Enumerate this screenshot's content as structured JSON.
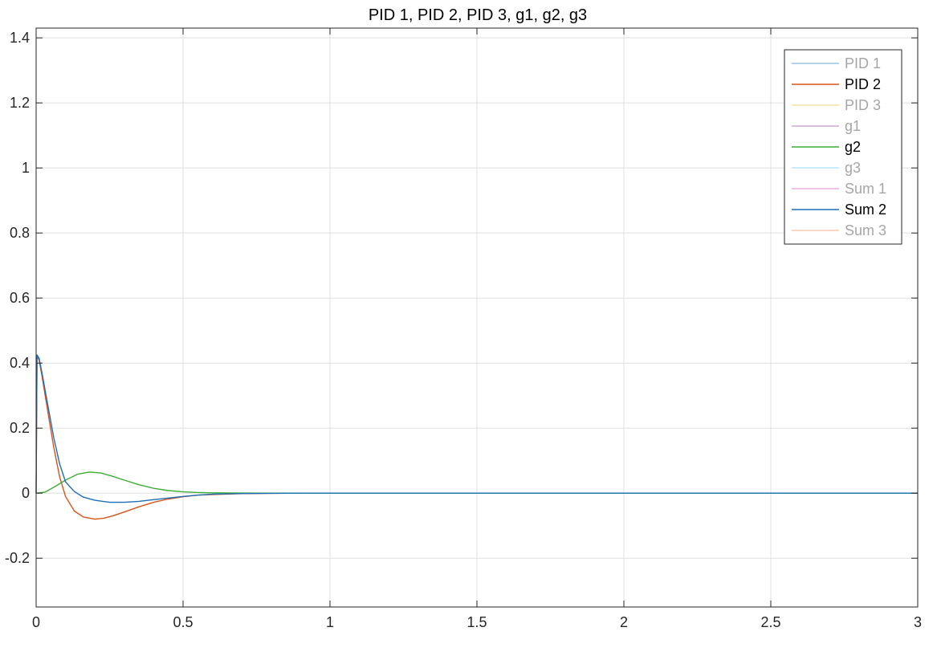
{
  "chart_data": {
    "type": "line",
    "title": "PID 1, PID 2, PID 3, g1, g2, g3",
    "xlabel": "",
    "ylabel": "",
    "xlim": [
      0,
      3
    ],
    "ylim": [
      -0.35,
      1.43
    ],
    "grid": true,
    "legend_position": "top-right",
    "x_ticks": [
      "0",
      "0.5",
      "1",
      "1.5",
      "2",
      "2.5",
      "3"
    ],
    "x_tick_values": [
      0,
      0.5,
      1,
      1.5,
      2,
      2.5,
      3
    ],
    "y_ticks": [
      "-0.2",
      "0",
      "0.2",
      "0.4",
      "0.6",
      "0.8",
      "1",
      "1.2",
      "1.4"
    ],
    "y_tick_values": [
      -0.2,
      0,
      0.2,
      0.4,
      0.6,
      0.8,
      1,
      1.2,
      1.4
    ],
    "series": [
      {
        "name": "PID 1",
        "color": "#0072BD",
        "active": false,
        "x": [],
        "y": []
      },
      {
        "name": "PID 2",
        "color": "#D95319",
        "active": true,
        "x": [
          0,
          0.003,
          0.01,
          0.02,
          0.04,
          0.06,
          0.08,
          0.1,
          0.13,
          0.16,
          0.2,
          0.23,
          0.26,
          0.3,
          0.35,
          0.4,
          0.45,
          0.5,
          0.55,
          0.6,
          0.7,
          0.8,
          0.9,
          1.0,
          1.5,
          2.0,
          2.5,
          3.0
        ],
        "y": [
          0,
          0.42,
          0.41,
          0.36,
          0.25,
          0.14,
          0.05,
          -0.01,
          -0.055,
          -0.073,
          -0.08,
          -0.077,
          -0.07,
          -0.058,
          -0.042,
          -0.028,
          -0.018,
          -0.011,
          -0.006,
          -0.004,
          -0.0015,
          -0.0005,
          0,
          0,
          0,
          0,
          0,
          0
        ]
      },
      {
        "name": "PID 3",
        "color": "#EDB120",
        "active": false,
        "x": [],
        "y": []
      },
      {
        "name": "g1",
        "color": "#7E2F8E",
        "active": false,
        "x": [],
        "y": []
      },
      {
        "name": "g2",
        "color": "#3EAD34",
        "active": true,
        "x": [
          0,
          0.03,
          0.06,
          0.1,
          0.14,
          0.18,
          0.22,
          0.26,
          0.3,
          0.35,
          0.4,
          0.45,
          0.5,
          0.55,
          0.6,
          0.7,
          0.8,
          1.0,
          1.5,
          2.0,
          2.5,
          3.0
        ],
        "y": [
          0,
          0.003,
          0.018,
          0.04,
          0.058,
          0.065,
          0.062,
          0.052,
          0.04,
          0.026,
          0.015,
          0.008,
          0.004,
          0.002,
          0.001,
          0.0003,
          0,
          0,
          0,
          0,
          0,
          0
        ]
      },
      {
        "name": "g3",
        "color": "#4DBEEE",
        "active": false,
        "x": [],
        "y": []
      },
      {
        "name": "Sum 1",
        "color": "#C03DAF",
        "active": false,
        "x": [],
        "y": []
      },
      {
        "name": "Sum 2",
        "color": "#1F6FB8",
        "active": true,
        "x": [
          0,
          0.003,
          0.01,
          0.02,
          0.04,
          0.06,
          0.08,
          0.1,
          0.13,
          0.16,
          0.2,
          0.25,
          0.3,
          0.35,
          0.4,
          0.45,
          0.5,
          0.55,
          0.6,
          0.7,
          0.8,
          0.9,
          1.0,
          1.5,
          2.0,
          2.5,
          3.0
        ],
        "y": [
          0,
          0.425,
          0.415,
          0.37,
          0.27,
          0.17,
          0.09,
          0.035,
          0.005,
          -0.012,
          -0.022,
          -0.028,
          -0.028,
          -0.025,
          -0.02,
          -0.015,
          -0.01,
          -0.006,
          -0.003,
          -0.0012,
          -0.0003,
          0,
          0,
          0,
          0,
          0,
          0
        ]
      },
      {
        "name": "Sum 3",
        "color": "#F08040",
        "active": false,
        "x": [],
        "y": []
      }
    ]
  }
}
